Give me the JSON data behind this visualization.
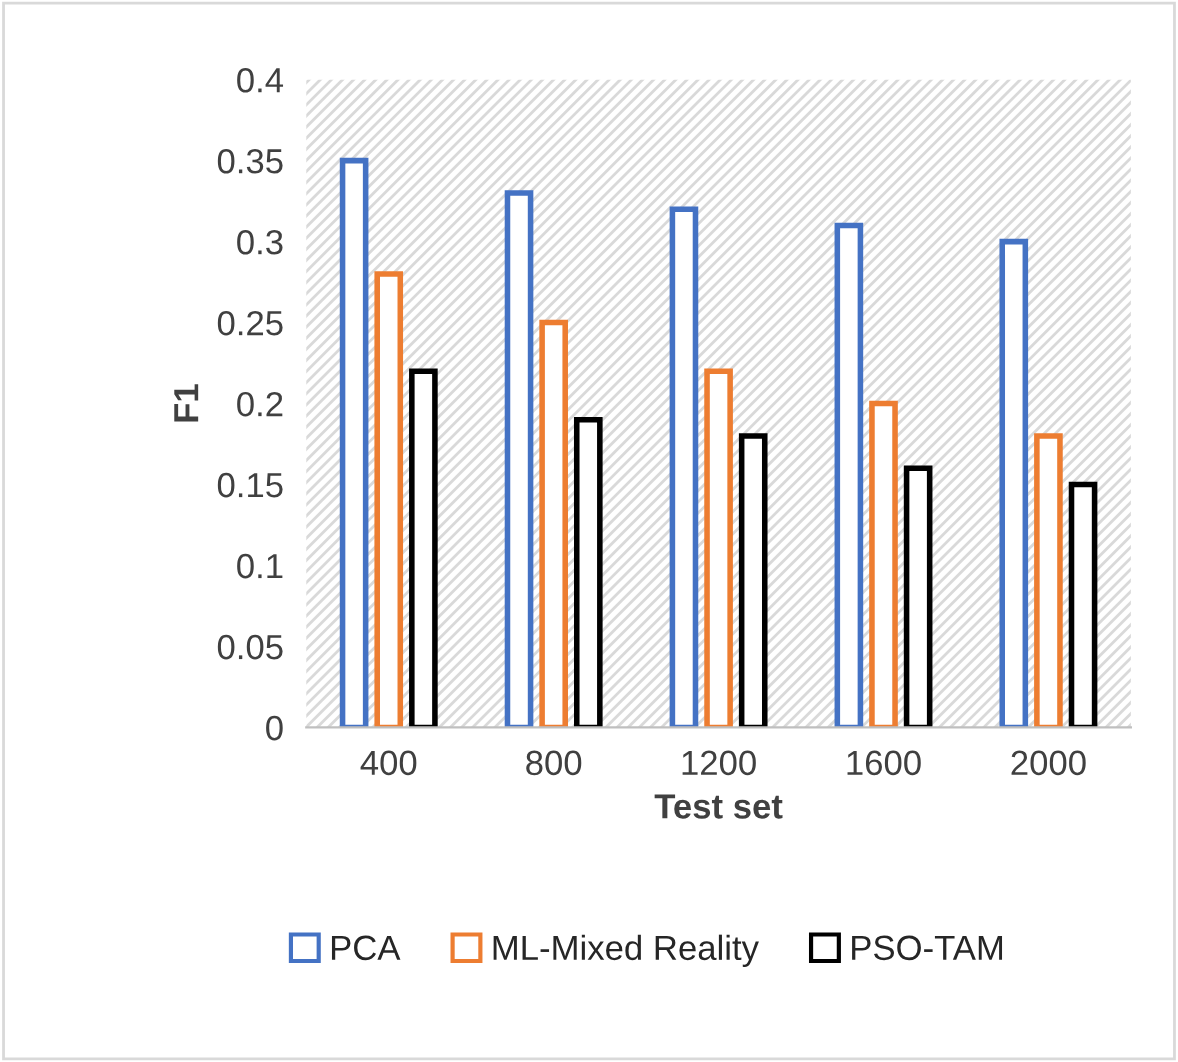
{
  "chart_data": {
    "type": "bar",
    "xlabel": "Test set",
    "ylabel": "F1",
    "categories": [
      "400",
      "800",
      "1200",
      "1600",
      "2000"
    ],
    "series": [
      {
        "name": "PCA",
        "color": "#4472c4",
        "values": [
          0.35,
          0.33,
          0.32,
          0.31,
          0.3
        ]
      },
      {
        "name": "ML-Mixed Reality",
        "color": "#ed7d31",
        "values": [
          0.28,
          0.25,
          0.22,
          0.2,
          0.18
        ]
      },
      {
        "name": "PSO-TAM",
        "color": "#000000",
        "values": [
          0.22,
          0.19,
          0.18,
          0.16,
          0.15
        ]
      }
    ],
    "ylim": [
      0,
      0.4
    ],
    "yticks": [
      0,
      0.05,
      0.1,
      0.15,
      0.2,
      0.25,
      0.3,
      0.35,
      0.4
    ],
    "grid": false,
    "legend": "bottom"
  }
}
